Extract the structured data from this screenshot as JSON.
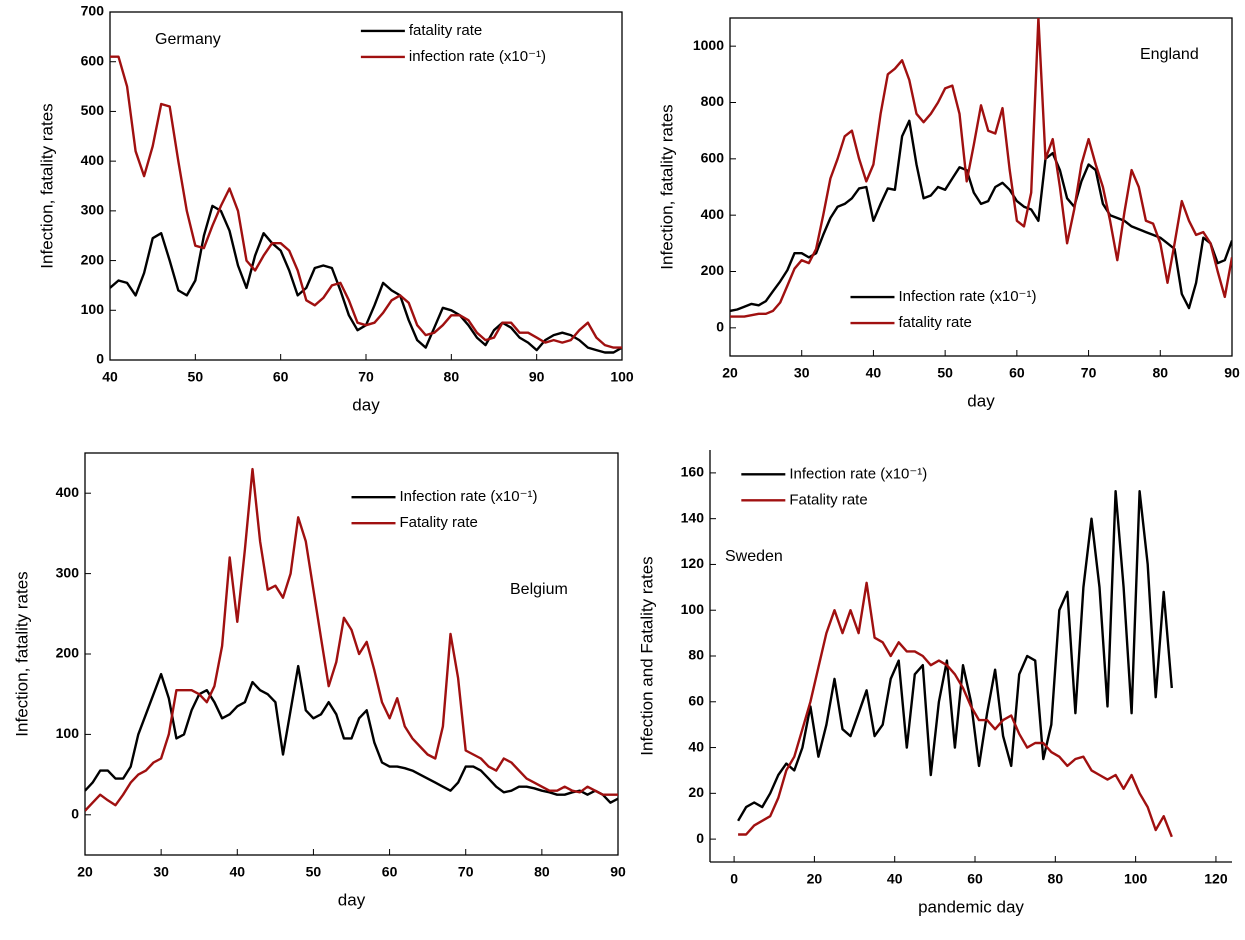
{
  "chart_data": [
    {
      "type": "line",
      "annotation": "Germany",
      "x_label": "day",
      "y_label": "Infection, fatality rates",
      "legend": "upper center",
      "x": [
        40,
        41,
        42,
        43,
        44,
        45,
        46,
        47,
        48,
        49,
        50,
        51,
        52,
        53,
        54,
        55,
        56,
        57,
        58,
        59,
        60,
        61,
        62,
        63,
        64,
        65,
        66,
        67,
        68,
        69,
        70,
        71,
        72,
        73,
        74,
        75,
        76,
        77,
        78,
        79,
        80,
        81,
        82,
        83,
        84,
        85,
        86,
        87,
        88,
        89,
        90,
        91,
        92,
        93,
        94,
        95,
        96,
        97,
        98,
        99,
        100
      ],
      "series": [
        {
          "name": "fatality rate",
          "color": "#000000",
          "values": [
            145,
            160,
            155,
            130,
            175,
            245,
            255,
            200,
            140,
            130,
            160,
            250,
            310,
            300,
            260,
            190,
            145,
            210,
            255,
            235,
            220,
            180,
            130,
            145,
            185,
            190,
            185,
            140,
            90,
            60,
            70,
            110,
            155,
            140,
            130,
            80,
            40,
            25,
            65,
            105,
            100,
            90,
            70,
            45,
            30,
            60,
            75,
            65,
            45,
            35,
            20,
            40,
            50,
            55,
            50,
            40,
            25,
            20,
            15,
            15,
            25
          ]
        },
        {
          "name": "infection rate (x10⁻¹)",
          "color": "#a01010",
          "values": [
            610,
            610,
            550,
            420,
            370,
            430,
            515,
            510,
            400,
            300,
            230,
            225,
            270,
            310,
            345,
            300,
            200,
            180,
            210,
            235,
            235,
            220,
            180,
            120,
            110,
            125,
            150,
            155,
            120,
            75,
            70,
            75,
            95,
            120,
            130,
            115,
            70,
            50,
            55,
            70,
            90,
            90,
            80,
            55,
            40,
            45,
            75,
            75,
            55,
            55,
            45,
            35,
            40,
            35,
            40,
            60,
            75,
            45,
            30,
            25,
            25
          ]
        }
      ],
      "xlim": [
        40,
        100
      ],
      "xticks": [
        40,
        50,
        60,
        70,
        80,
        90,
        100
      ],
      "ylim": [
        0,
        700
      ],
      "yticks": [
        0,
        100,
        200,
        300,
        400,
        500,
        600,
        700
      ]
    },
    {
      "type": "line",
      "annotation": "England",
      "x_label": "day",
      "y_label": "Infection, fatality rates",
      "legend": "lower left",
      "x": [
        20,
        21,
        22,
        23,
        24,
        25,
        26,
        27,
        28,
        29,
        30,
        31,
        32,
        33,
        34,
        35,
        36,
        37,
        38,
        39,
        40,
        41,
        42,
        43,
        44,
        45,
        46,
        47,
        48,
        49,
        50,
        51,
        52,
        53,
        54,
        55,
        56,
        57,
        58,
        59,
        60,
        61,
        62,
        63,
        64,
        65,
        66,
        67,
        68,
        69,
        70,
        71,
        72,
        73,
        74,
        75,
        76,
        77,
        78,
        79,
        80,
        81,
        82,
        83,
        84,
        85,
        86,
        87,
        88,
        89,
        90
      ],
      "series": [
        {
          "name": "Infection rate (x10⁻¹)",
          "color": "#000000",
          "values": [
            60,
            65,
            75,
            85,
            80,
            95,
            130,
            165,
            205,
            265,
            265,
            250,
            265,
            330,
            390,
            430,
            440,
            460,
            495,
            500,
            380,
            440,
            495,
            490,
            680,
            735,
            580,
            460,
            470,
            500,
            490,
            530,
            570,
            560,
            480,
            440,
            450,
            500,
            515,
            490,
            450,
            430,
            420,
            380,
            600,
            620,
            560,
            460,
            430,
            520,
            580,
            560,
            440,
            400,
            390,
            380,
            360,
            350,
            340,
            330,
            320,
            300,
            280,
            120,
            70,
            160,
            320,
            300,
            230,
            240,
            310
          ]
        },
        {
          "name": "fatality rate",
          "color": "#a01010",
          "values": [
            40,
            40,
            40,
            45,
            50,
            50,
            60,
            90,
            150,
            210,
            240,
            230,
            280,
            400,
            530,
            600,
            680,
            700,
            600,
            520,
            580,
            760,
            900,
            920,
            950,
            880,
            760,
            730,
            760,
            800,
            850,
            860,
            760,
            520,
            650,
            790,
            700,
            690,
            780,
            560,
            380,
            360,
            480,
            1100,
            600,
            670,
            500,
            300,
            420,
            580,
            670,
            580,
            500,
            380,
            240,
            410,
            560,
            500,
            380,
            370,
            300,
            160,
            300,
            450,
            380,
            330,
            340,
            300,
            200,
            110,
            250
          ]
        }
      ],
      "xlim": [
        20,
        90
      ],
      "xticks": [
        20,
        30,
        40,
        50,
        60,
        70,
        80,
        90
      ],
      "ylim": [
        -100,
        1100
      ],
      "yticks": [
        0,
        200,
        400,
        600,
        800,
        1000
      ]
    },
    {
      "type": "line",
      "annotation": "Belgium",
      "x_label": "day",
      "y_label": "Infection, fatality rates",
      "legend": "upper right",
      "x": [
        20,
        21,
        22,
        23,
        24,
        25,
        26,
        27,
        28,
        29,
        30,
        31,
        32,
        33,
        34,
        35,
        36,
        37,
        38,
        39,
        40,
        41,
        42,
        43,
        44,
        45,
        46,
        47,
        48,
        49,
        50,
        51,
        52,
        53,
        54,
        55,
        56,
        57,
        58,
        59,
        60,
        61,
        62,
        63,
        64,
        65,
        66,
        67,
        68,
        69,
        70,
        71,
        72,
        73,
        74,
        75,
        76,
        77,
        78,
        79,
        80,
        81,
        82,
        83,
        84,
        85,
        86,
        87,
        88,
        89,
        90
      ],
      "series": [
        {
          "name": "Infection rate (x10⁻¹)",
          "color": "#000000",
          "values": [
            30,
            40,
            55,
            55,
            45,
            45,
            60,
            100,
            125,
            150,
            175,
            145,
            95,
            100,
            130,
            150,
            155,
            140,
            120,
            125,
            135,
            140,
            165,
            155,
            150,
            140,
            75,
            130,
            185,
            130,
            120,
            125,
            140,
            125,
            95,
            95,
            120,
            130,
            90,
            65,
            60,
            60,
            58,
            55,
            50,
            45,
            40,
            35,
            30,
            40,
            60,
            60,
            55,
            45,
            35,
            28,
            30,
            35,
            35,
            33,
            30,
            28,
            25,
            25,
            28,
            30,
            25,
            30,
            25,
            15,
            20
          ]
        },
        {
          "name": "Fatality rate",
          "color": "#a01010",
          "values": [
            5,
            15,
            25,
            18,
            12,
            25,
            40,
            50,
            55,
            65,
            70,
            100,
            155,
            155,
            155,
            150,
            140,
            160,
            210,
            320,
            240,
            330,
            430,
            340,
            280,
            285,
            270,
            300,
            370,
            340,
            280,
            220,
            160,
            190,
            245,
            230,
            200,
            215,
            180,
            140,
            120,
            145,
            110,
            95,
            85,
            75,
            70,
            110,
            225,
            170,
            80,
            75,
            70,
            60,
            55,
            70,
            65,
            55,
            45,
            40,
            35,
            30,
            30,
            35,
            30,
            28,
            35,
            30,
            25,
            25,
            25
          ]
        }
      ],
      "xlim": [
        20,
        90
      ],
      "xticks": [
        20,
        30,
        40,
        50,
        60,
        70,
        80,
        90
      ],
      "ylim": [
        -50,
        450
      ],
      "yticks": [
        0,
        100,
        200,
        300,
        400
      ]
    },
    {
      "type": "line",
      "annotation": "Sweden",
      "x_label": "pandemic day",
      "y_label": "Infection and Fatality rates",
      "legend": "upper left",
      "x": [
        1,
        3,
        5,
        7,
        9,
        11,
        13,
        15,
        17,
        19,
        21,
        23,
        25,
        27,
        29,
        31,
        33,
        35,
        37,
        39,
        41,
        43,
        45,
        47,
        49,
        51,
        53,
        55,
        57,
        59,
        61,
        63,
        65,
        67,
        69,
        71,
        73,
        75,
        77,
        79,
        81,
        83,
        85,
        87,
        89,
        91,
        93,
        95,
        97,
        99,
        101,
        103,
        105,
        107,
        109
      ],
      "series": [
        {
          "name": "Infection rate (x10⁻¹)",
          "color": "#000000",
          "values": [
            8,
            14,
            16,
            14,
            20,
            28,
            33,
            30,
            40,
            58,
            36,
            50,
            70,
            48,
            45,
            55,
            65,
            45,
            50,
            70,
            78,
            40,
            72,
            76,
            28,
            60,
            78,
            40,
            76,
            60,
            32,
            55,
            74,
            45,
            32,
            72,
            80,
            78,
            35,
            50,
            100,
            108,
            55,
            110,
            140,
            110,
            58,
            152,
            110,
            55,
            152,
            120,
            62,
            108,
            66
          ]
        },
        {
          "name": "Fatality rate",
          "color": "#a01010",
          "values": [
            2,
            2,
            6,
            8,
            10,
            18,
            30,
            36,
            48,
            60,
            75,
            90,
            100,
            90,
            100,
            90,
            112,
            88,
            86,
            80,
            86,
            82,
            82,
            80,
            76,
            78,
            76,
            72,
            66,
            58,
            52,
            52,
            48,
            52,
            54,
            46,
            40,
            42,
            42,
            38,
            36,
            32,
            35,
            36,
            30,
            28,
            26,
            28,
            22,
            28,
            20,
            14,
            4,
            10,
            1
          ]
        }
      ],
      "xlim": [
        -6,
        124
      ],
      "xticks": [
        0,
        20,
        40,
        60,
        80,
        100,
        120
      ],
      "ylim": [
        -10,
        170
      ],
      "yticks": [
        0,
        20,
        40,
        60,
        80,
        100,
        120,
        140,
        160
      ]
    }
  ]
}
